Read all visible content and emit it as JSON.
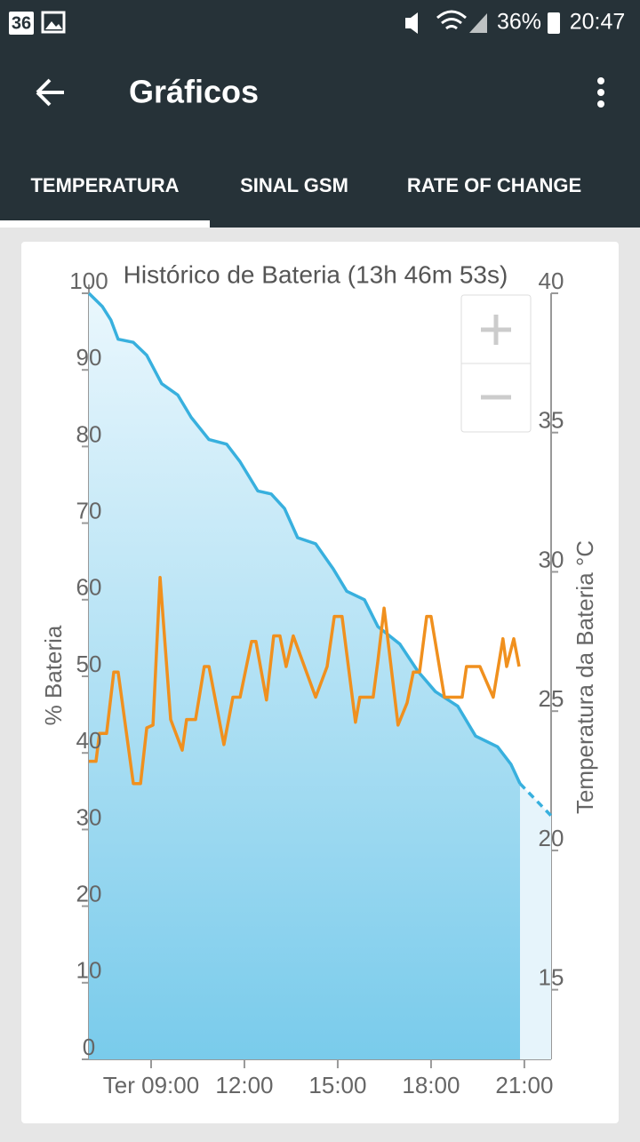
{
  "status_bar": {
    "notification": "36",
    "battery": "36%",
    "time": "20:47"
  },
  "app_bar": {
    "title": "Gráficos"
  },
  "tabs": [
    "TEMPERATURA",
    "SINAL GSM",
    "RATE OF CHANGE"
  ],
  "chart_data": {
    "type": "line",
    "title": "Histórico de Bateria (13h 46m 53s)",
    "ylabel": "% Bateria",
    "y2label": "Temperatura da Bateria °C",
    "xlim": [
      7,
      21.86
    ],
    "xticks": [
      {
        "value": 9,
        "label": "Ter 09:00"
      },
      {
        "value": 12,
        "label": "12:00"
      },
      {
        "value": 15,
        "label": "15:00"
      },
      {
        "value": 18,
        "label": "18:00"
      },
      {
        "value": 21,
        "label": "21:00"
      }
    ],
    "ylim": [
      0,
      100
    ],
    "yticks": [
      0,
      10,
      20,
      30,
      40,
      50,
      60,
      70,
      80,
      90,
      100
    ],
    "y2lim": [
      12.5,
      40
    ],
    "y2ticks": [
      15,
      20,
      25,
      30,
      35,
      40
    ],
    "series": [
      {
        "color": "#38b0de",
        "area": true,
        "x": [
          7.0,
          7.43,
          7.71,
          7.94,
          8.43,
          8.86,
          9.34,
          9.86,
          10.29,
          10.86,
          11.43,
          11.86,
          12.43,
          12.86,
          13.29,
          13.71,
          14.29,
          14.86,
          15.29,
          15.86,
          16.29,
          17.0,
          17.57,
          18.14,
          18.86,
          19.43,
          20.14,
          20.57,
          20.86
        ],
        "values": [
          100,
          98.3,
          96.5,
          94,
          93.6,
          91.9,
          88.2,
          86.7,
          83.8,
          80.9,
          80.3,
          78,
          74.2,
          73.8,
          71.9,
          68.1,
          67.3,
          64,
          61.1,
          60,
          56.5,
          54.2,
          50.7,
          48,
          46.1,
          42.2,
          40.8,
          38.5,
          36
        ]
      },
      {
        "color": "#38b0de",
        "area": true,
        "dash": true,
        "x": [
          20.86,
          21.86
        ],
        "values": [
          36,
          31.8
        ]
      },
      {
        "color": "#f0901e",
        "axis": "y2",
        "x": [
          7.0,
          7.23,
          7.34,
          7.57,
          7.8,
          7.94,
          8.43,
          8.66,
          8.86,
          9.06,
          9.29,
          9.63,
          10.0,
          10.14,
          10.43,
          10.71,
          10.86,
          11.34,
          11.63,
          11.86,
          12.23,
          12.37,
          12.71,
          12.94,
          13.14,
          13.34,
          13.57,
          14.29,
          14.66,
          14.89,
          15.14,
          15.57,
          15.71,
          16.14,
          16.29,
          16.49,
          16.94,
          17.23,
          17.43,
          17.63,
          17.86,
          18.0,
          18.43,
          19.0,
          19.14,
          19.57,
          20.0,
          20.31,
          20.43,
          20.66,
          20.83
        ],
        "values": [
          23.2,
          23.2,
          24.2,
          24.2,
          26.4,
          26.4,
          22.4,
          22.4,
          24.4,
          24.5,
          29.8,
          24.7,
          23.6,
          24.7,
          24.7,
          26.6,
          26.6,
          23.8,
          25.5,
          25.5,
          27.5,
          27.5,
          25.4,
          27.7,
          27.7,
          26.6,
          27.7,
          25.5,
          26.6,
          28.4,
          28.4,
          24.6,
          25.5,
          25.5,
          26.8,
          28.7,
          24.5,
          25.3,
          26.4,
          26.4,
          28.4,
          28.4,
          25.5,
          25.5,
          26.6,
          26.6,
          25.5,
          27.6,
          26.6,
          27.6,
          26.6
        ]
      }
    ]
  }
}
